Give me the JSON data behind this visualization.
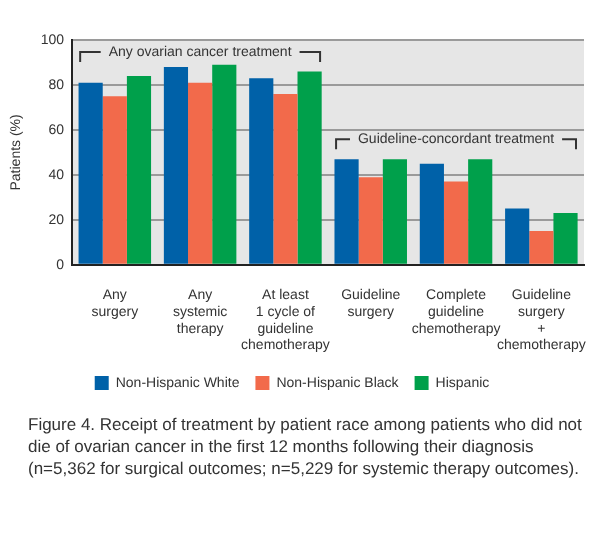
{
  "chart_data": {
    "type": "bar",
    "ylabel": "Patients (%)",
    "categories": [
      "Any\nsurgery",
      "Any\nsystemic\ntherapy",
      "At least\n1 cycle of\nguideline\nchemotherapy",
      "Guideline\nsurgery",
      "Complete\nguideline\nchemotherapy",
      "Guideline\nsurgery\n+\nchemotherapy"
    ],
    "series": [
      {
        "name": "Non-Hispanic White",
        "color": "#0061a8",
        "values": [
          81,
          88,
          83,
          47,
          45,
          25
        ]
      },
      {
        "name": "Non-Hispanic Black",
        "color": "#f26a4b",
        "values": [
          75,
          81,
          76,
          39,
          37,
          15
        ]
      },
      {
        "name": "Hispanic",
        "color": "#00a04b",
        "values": [
          84,
          89,
          86,
          47,
          47,
          23
        ]
      }
    ],
    "ylim": [
      0,
      100
    ],
    "yticks": [
      0,
      20,
      40,
      60,
      80,
      100
    ],
    "grid": "y",
    "legend": "bottom",
    "annotations": [
      "Any ovarian cancer treatment",
      "Guideline-concordant treatment",
      "Figure 4. Receipt of treatment by patient race among patients who did not die of ovarian cancer in the first 12 months following their diagnosis (n=5,362 for surgical outcomes; n=5,229 for systemic therapy outcomes)."
    ]
  }
}
